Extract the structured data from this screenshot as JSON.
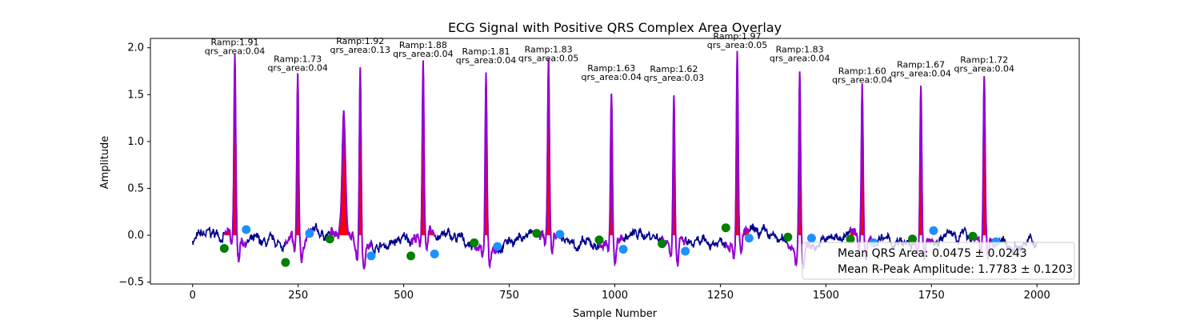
{
  "chart_data": {
    "type": "line",
    "title": "ECG Signal with Positive QRS Complex Area Overlay",
    "xlabel": "Sample Number",
    "ylabel": "Amplitude",
    "xlim": [
      -100,
      2100
    ],
    "ylim": [
      -0.52,
      2.1
    ],
    "xticks": [
      0,
      250,
      500,
      750,
      1000,
      1250,
      1500,
      1750,
      2000
    ],
    "yticks": [
      -0.5,
      0.0,
      0.5,
      1.0,
      1.5,
      2.0
    ],
    "ytick_labels": [
      "−0.5",
      "0.0",
      "0.5",
      "1.0",
      "1.5",
      "2.0"
    ],
    "grid": false,
    "colors": {
      "signal": "#00008b",
      "qrs_overlay": "#9400d3",
      "area_fill": "#ff0000",
      "onset_marker": "#008000",
      "offset_marker": "#1e90ff"
    },
    "beats": [
      {
        "r_sample": 100,
        "r_amp": 1.91,
        "qrs_area": 0.04,
        "onset_sample": 75,
        "onset_amp": -0.14,
        "offset_sample": 127,
        "offset_amp": 0.06,
        "label_r": "Ramp:1.91",
        "label_area": "qrs_area:0.04"
      },
      {
        "r_sample": 249,
        "r_amp": 1.73,
        "qrs_area": 0.04,
        "onset_sample": 220,
        "onset_amp": -0.29,
        "offset_sample": 277,
        "offset_amp": 0.02,
        "label_r": "Ramp:1.73",
        "label_area": "qrs_area:0.04"
      },
      {
        "r_sample": 397,
        "r_amp": 1.92,
        "qrs_area": 0.13,
        "onset_sample": 325,
        "onset_amp": -0.04,
        "offset_sample": 423,
        "offset_amp": -0.22,
        "label_r": "Ramp:1.92",
        "label_area": "qrs_area:0.13"
      },
      {
        "r_sample": 546,
        "r_amp": 1.88,
        "qrs_area": 0.04,
        "onset_sample": 517,
        "onset_amp": -0.22,
        "offset_sample": 573,
        "offset_amp": -0.2,
        "label_r": "Ramp:1.88",
        "label_area": "qrs_area:0.04"
      },
      {
        "r_sample": 695,
        "r_amp": 1.81,
        "qrs_area": 0.04,
        "onset_sample": 667,
        "onset_amp": -0.08,
        "offset_sample": 722,
        "offset_amp": -0.12,
        "label_r": "Ramp:1.81",
        "label_area": "qrs_area:0.04"
      },
      {
        "r_sample": 843,
        "r_amp": 1.83,
        "qrs_area": 0.05,
        "onset_sample": 815,
        "onset_amp": 0.02,
        "offset_sample": 870,
        "offset_amp": 0.01,
        "label_r": "Ramp:1.83",
        "label_area": "qrs_area:0.05"
      },
      {
        "r_sample": 992,
        "r_amp": 1.63,
        "qrs_area": 0.04,
        "onset_sample": 963,
        "onset_amp": -0.05,
        "offset_sample": 1020,
        "offset_amp": -0.15,
        "label_r": "Ramp:1.63",
        "label_area": "qrs_area:0.04"
      },
      {
        "r_sample": 1140,
        "r_amp": 1.62,
        "qrs_area": 0.03,
        "onset_sample": 1112,
        "onset_amp": -0.09,
        "offset_sample": 1167,
        "offset_amp": -0.17,
        "label_r": "Ramp:1.62",
        "label_area": "qrs_area:0.03"
      },
      {
        "r_sample": 1290,
        "r_amp": 1.97,
        "qrs_area": 0.05,
        "onset_sample": 1263,
        "onset_amp": 0.08,
        "offset_sample": 1318,
        "offset_amp": -0.03,
        "label_r": "Ramp:1.97",
        "label_area": "qrs_area:0.05"
      },
      {
        "r_sample": 1438,
        "r_amp": 1.83,
        "qrs_area": 0.04,
        "onset_sample": 1410,
        "onset_amp": -0.02,
        "offset_sample": 1466,
        "offset_amp": -0.03,
        "label_r": "Ramp:1.83",
        "label_area": "qrs_area:0.04"
      },
      {
        "r_sample": 1586,
        "r_amp": 1.6,
        "qrs_area": 0.04,
        "onset_sample": 1558,
        "onset_amp": -0.04,
        "offset_sample": 1613,
        "offset_amp": -0.08,
        "label_r": "Ramp:1.60",
        "label_area": "qrs_area:0.04"
      },
      {
        "r_sample": 1725,
        "r_amp": 1.67,
        "qrs_area": 0.04,
        "onset_sample": 1705,
        "onset_amp": -0.04,
        "offset_sample": 1755,
        "offset_amp": 0.05,
        "label_r": "Ramp:1.67",
        "label_area": "qrs_area:0.04"
      },
      {
        "r_sample": 1875,
        "r_amp": 1.72,
        "qrs_area": 0.04,
        "onset_sample": 1848,
        "onset_amp": -0.01,
        "offset_sample": 1903,
        "offset_amp": -0.07,
        "label_r": "Ramp:1.72",
        "label_area": "qrs_area:0.04"
      }
    ],
    "legend": {
      "placement": "lower-right",
      "entries": [
        "Mean QRS Area: 0.0475 ± 0.0243",
        "Mean R-Peak Amplitude: 1.7783 ± 0.1203"
      ]
    }
  }
}
